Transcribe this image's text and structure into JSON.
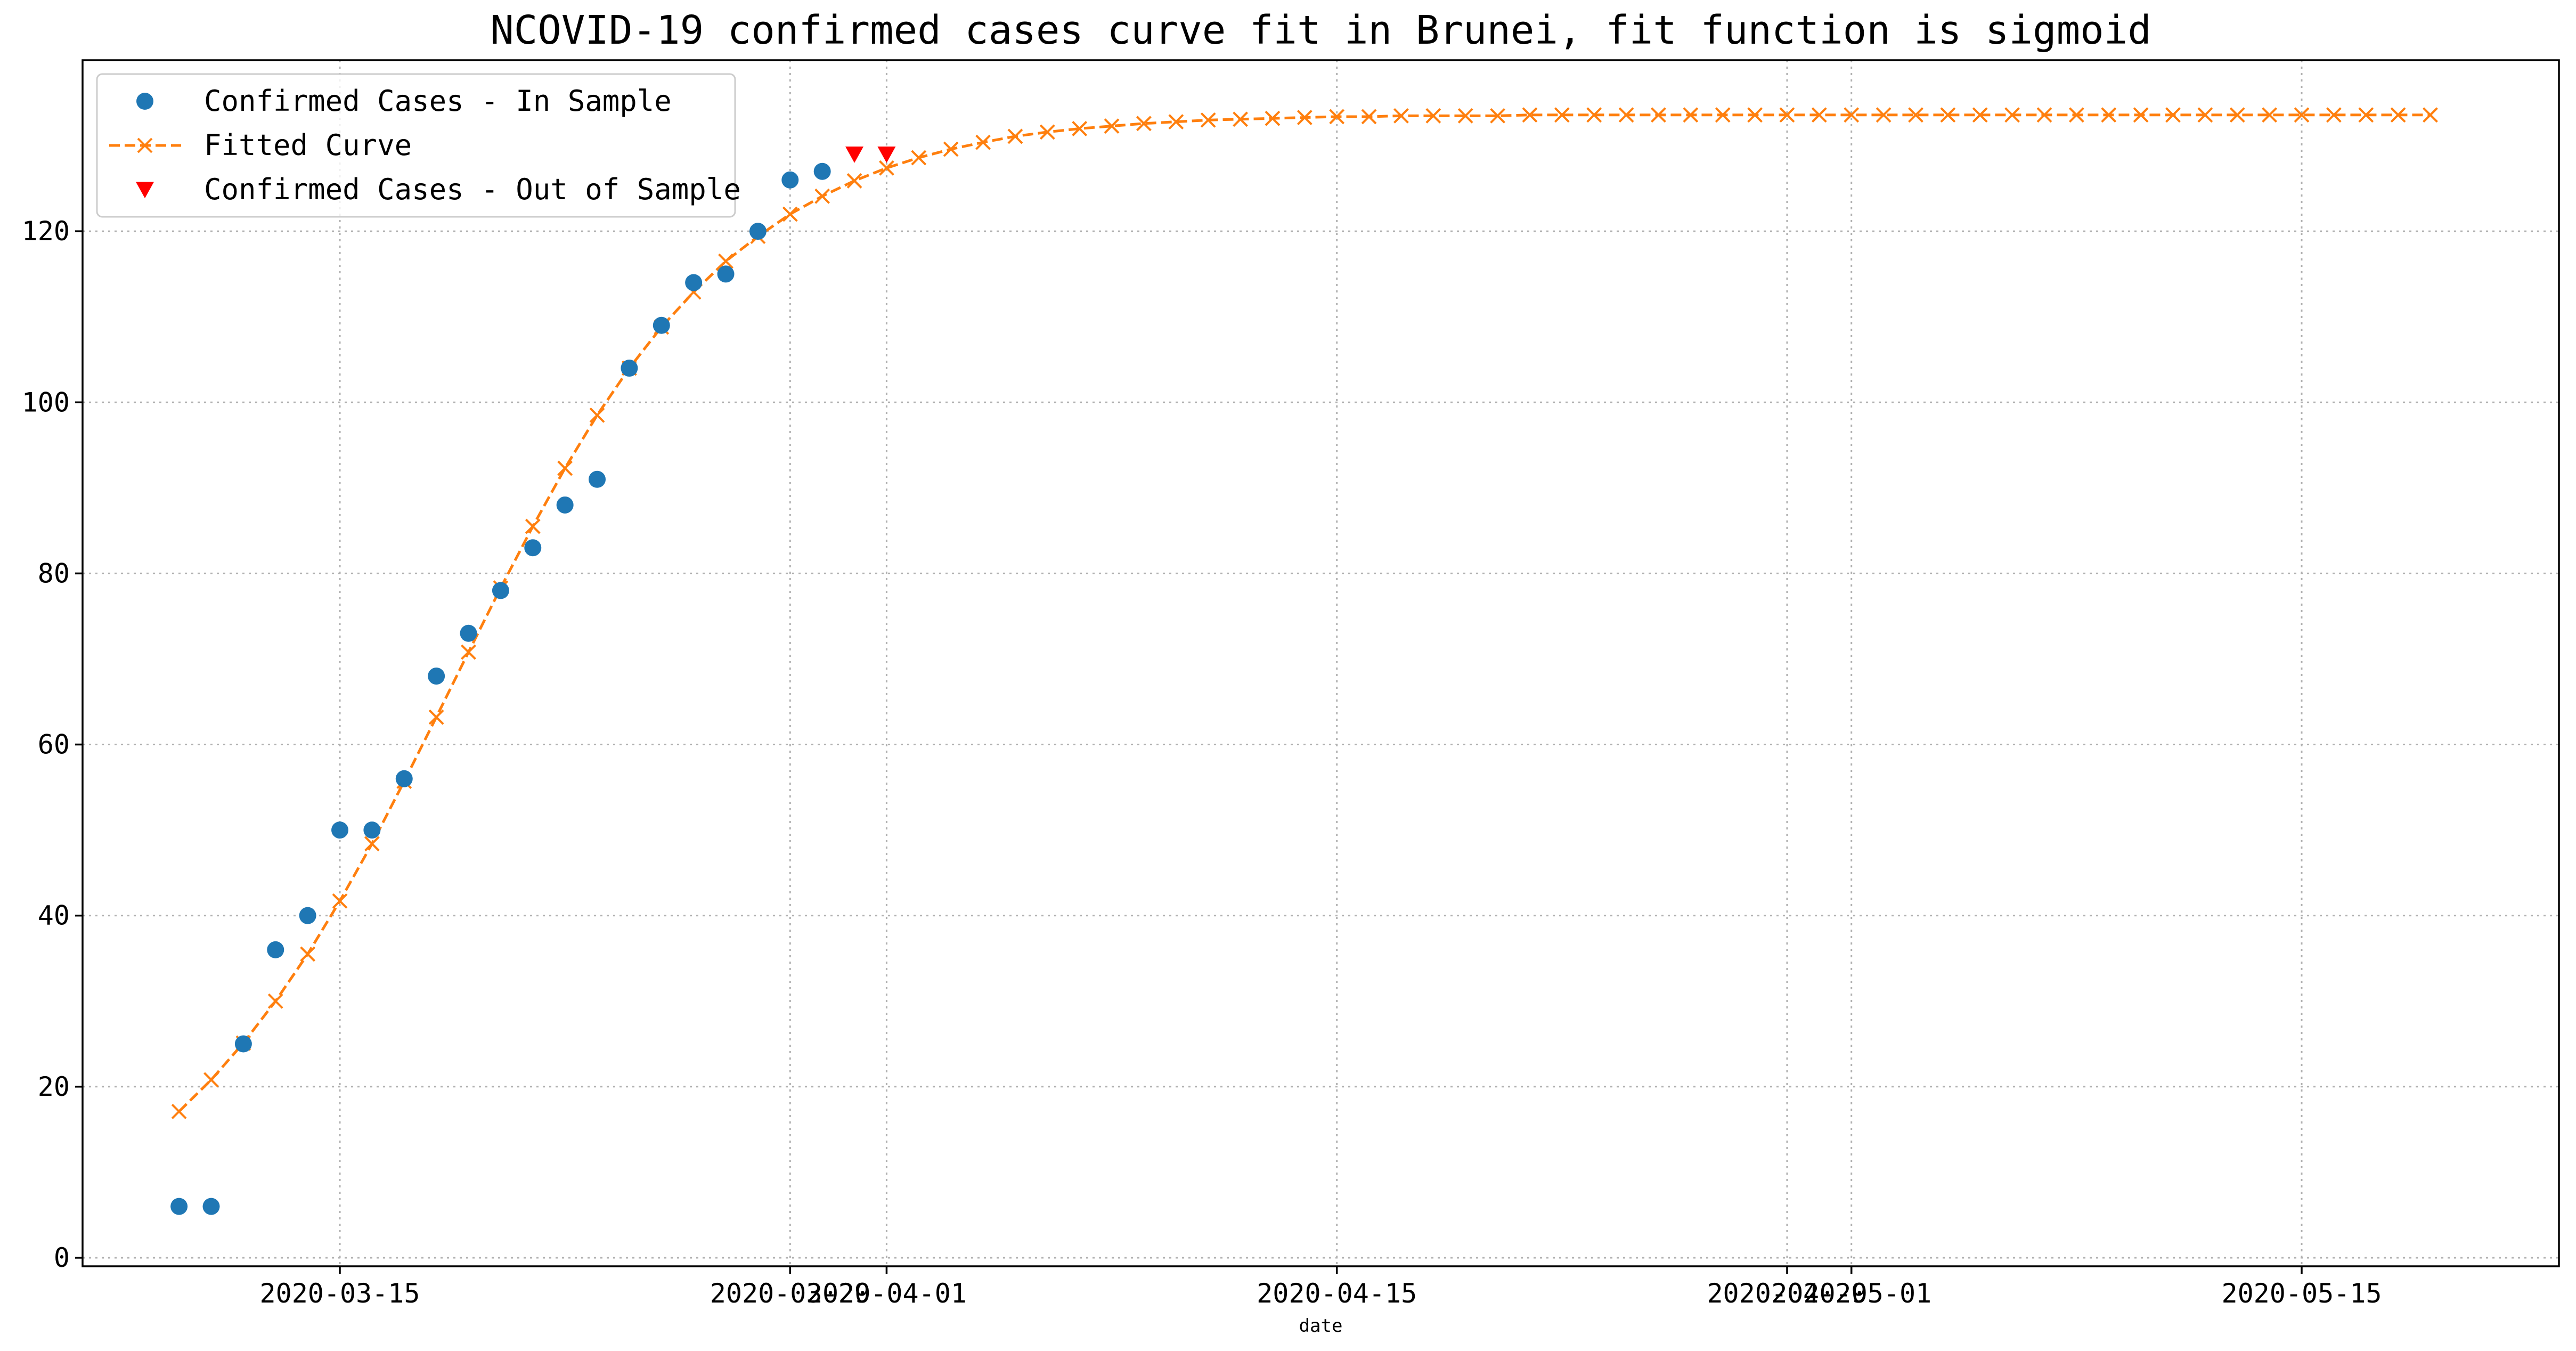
{
  "chart_data": {
    "type": "line",
    "title": "NCOVID-19 confirmed cases curve fit in Brunei, fit function is sigmoid",
    "xlabel": "date",
    "ylabel": "",
    "x_axis_type": "date",
    "xlim": [
      "2020-03-07",
      "2020-05-23"
    ],
    "ylim": [
      -1,
      140
    ],
    "grid": true,
    "legend_position": "top-left",
    "x_tick_labels": [
      {
        "date": "2020-03-15",
        "label": "2020-03-15"
      },
      {
        "date": "2020-03-29",
        "label": "2020-03-29"
      },
      {
        "date": "2020-04-01",
        "label": "2020-04-01"
      },
      {
        "date": "2020-04-15",
        "label": "2020-04-15"
      },
      {
        "date": "2020-04-29",
        "label": "2020-04-29"
      },
      {
        "date": "2020-05-01",
        "label": "2020-05-01"
      },
      {
        "date": "2020-05-15",
        "label": "2020-05-15"
      }
    ],
    "y_ticks": [
      0,
      20,
      40,
      60,
      80,
      100,
      120
    ],
    "colors": {
      "in_sample": "#1f77b4",
      "fitted": "#ff7f0e",
      "out_of_sample": "#ff0000",
      "grid": "#b0b0b0"
    },
    "series": [
      {
        "name": "Confirmed Cases - In Sample",
        "marker": "circle",
        "linestyle": "none",
        "x": [
          "2020-03-10",
          "2020-03-11",
          "2020-03-12",
          "2020-03-13",
          "2020-03-14",
          "2020-03-15",
          "2020-03-16",
          "2020-03-17",
          "2020-03-18",
          "2020-03-19",
          "2020-03-20",
          "2020-03-21",
          "2020-03-22",
          "2020-03-23",
          "2020-03-24",
          "2020-03-25",
          "2020-03-26",
          "2020-03-27",
          "2020-03-28",
          "2020-03-29",
          "2020-03-30"
        ],
        "y": [
          6,
          6,
          25,
          36,
          40,
          50,
          50,
          56,
          68,
          73,
          78,
          83,
          88,
          91,
          104,
          109,
          114,
          115,
          120,
          126,
          127
        ]
      },
      {
        "name": "Fitted Curve",
        "marker": "x",
        "linestyle": "dashed",
        "x": [
          "2020-03-10",
          "2020-03-11",
          "2020-03-12",
          "2020-03-13",
          "2020-03-14",
          "2020-03-15",
          "2020-03-16",
          "2020-03-17",
          "2020-03-18",
          "2020-03-19",
          "2020-03-20",
          "2020-03-21",
          "2020-03-22",
          "2020-03-23",
          "2020-03-24",
          "2020-03-25",
          "2020-03-26",
          "2020-03-27",
          "2020-03-28",
          "2020-03-29",
          "2020-03-30",
          "2020-03-31",
          "2020-04-01",
          "2020-04-02",
          "2020-04-03",
          "2020-04-04",
          "2020-04-05",
          "2020-04-06",
          "2020-04-07",
          "2020-04-08",
          "2020-04-09",
          "2020-04-10",
          "2020-04-11",
          "2020-04-12",
          "2020-04-13",
          "2020-04-14",
          "2020-04-15",
          "2020-04-16",
          "2020-04-17",
          "2020-04-18",
          "2020-04-19",
          "2020-04-20",
          "2020-04-21",
          "2020-04-22",
          "2020-04-23",
          "2020-04-24",
          "2020-04-25",
          "2020-04-26",
          "2020-04-27",
          "2020-04-28",
          "2020-04-29",
          "2020-04-30",
          "2020-05-01",
          "2020-05-02",
          "2020-05-03",
          "2020-05-04",
          "2020-05-05",
          "2020-05-06",
          "2020-05-07",
          "2020-05-08",
          "2020-05-09",
          "2020-05-10",
          "2020-05-11",
          "2020-05-12",
          "2020-05-13",
          "2020-05-14",
          "2020-05-15",
          "2020-05-16",
          "2020-05-17",
          "2020-05-18",
          "2020-05-19"
        ],
        "y": [
          17.1,
          20.8,
          25.1,
          30.0,
          35.5,
          41.7,
          48.4,
          55.7,
          63.2,
          70.8,
          78.3,
          85.5,
          92.3,
          98.5,
          104.0,
          108.8,
          112.9,
          116.5,
          119.4,
          122.0,
          124.1,
          125.9,
          127.4,
          128.6,
          129.6,
          130.4,
          131.1,
          131.6,
          132.0,
          132.3,
          132.6,
          132.8,
          133.0,
          133.1,
          133.2,
          133.3,
          133.4,
          133.4,
          133.5,
          133.5,
          133.5,
          133.5,
          133.6,
          133.6,
          133.6,
          133.6,
          133.6,
          133.6,
          133.6,
          133.6,
          133.6,
          133.6,
          133.6,
          133.6,
          133.6,
          133.6,
          133.6,
          133.6,
          133.6,
          133.6,
          133.6,
          133.6,
          133.6,
          133.6,
          133.6,
          133.6,
          133.6,
          133.6,
          133.6,
          133.6,
          133.6
        ]
      },
      {
        "name": "Confirmed Cases - Out of Sample",
        "marker": "triangle-down",
        "linestyle": "none",
        "x": [
          "2020-03-31",
          "2020-04-01"
        ],
        "y": [
          129,
          129
        ]
      }
    ]
  }
}
